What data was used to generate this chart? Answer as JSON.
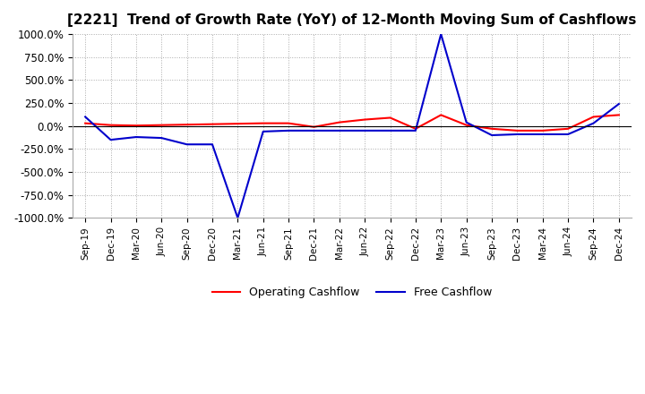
{
  "title": "[2221]  Trend of Growth Rate (YoY) of 12-Month Moving Sum of Cashflows",
  "title_fontsize": 11,
  "background_color": "#ffffff",
  "plot_background_color": "#ffffff",
  "grid_color": "#aaaaaa",
  "ylim": [
    -1000,
    1000
  ],
  "yticks": [
    -1000,
    -750,
    -500,
    -250,
    0,
    250,
    500,
    750,
    1000
  ],
  "ytick_labels": [
    "-1000.0%",
    "-750.0%",
    "-500.0%",
    "-250.0%",
    "0.0%",
    "250.0%",
    "500.0%",
    "750.0%",
    "1000.0%"
  ],
  "x_labels": [
    "Sep-19",
    "Dec-19",
    "Mar-20",
    "Jun-20",
    "Sep-20",
    "Dec-20",
    "Mar-21",
    "Jun-21",
    "Sep-21",
    "Dec-21",
    "Mar-22",
    "Jun-22",
    "Sep-22",
    "Dec-22",
    "Mar-23",
    "Jun-23",
    "Sep-23",
    "Dec-23",
    "Mar-24",
    "Jun-24",
    "Sep-24",
    "Dec-24"
  ],
  "operating_cashflow": [
    30,
    10,
    5,
    10,
    15,
    20,
    25,
    30,
    30,
    -10,
    40,
    70,
    90,
    -30,
    120,
    10,
    -30,
    -50,
    -50,
    -30,
    100,
    120
  ],
  "free_cashflow": [
    100,
    -150,
    -120,
    -130,
    -200,
    -200,
    -1000,
    -60,
    -50,
    -50,
    -50,
    -50,
    -50,
    -50,
    1000,
    40,
    -100,
    -90,
    -90,
    -90,
    30,
    240
  ],
  "operating_color": "#ff0000",
  "free_color": "#0000cc",
  "legend_loc": "lower center",
  "legend_ncol": 2,
  "figsize": [
    7.2,
    4.4
  ],
  "dpi": 100
}
